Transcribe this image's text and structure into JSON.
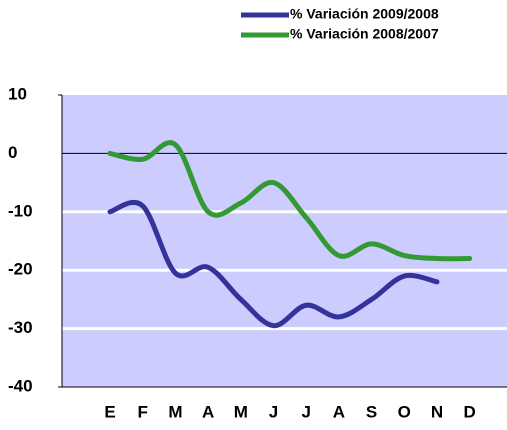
{
  "chart_data": {
    "type": "line",
    "categories": [
      "E",
      "F",
      "M",
      "A",
      "M",
      "J",
      "J",
      "A",
      "S",
      "O",
      "N",
      "D"
    ],
    "series": [
      {
        "name": "% Variación 2009/2008",
        "color": "#333399",
        "values": [
          -10,
          -9,
          -20.5,
          -19.5,
          -25,
          -29.5,
          -26,
          -28,
          -25,
          -21,
          -22,
          null
        ]
      },
      {
        "name": "% Variación 2008/2007",
        "color": "#339933",
        "values": [
          0,
          -1,
          1.5,
          -10,
          -8.5,
          -5,
          -11,
          -17.5,
          -15.5,
          -17.5,
          -18,
          -18
        ]
      }
    ],
    "ylim": [
      -40,
      10
    ],
    "yticks": [
      10,
      0,
      -10,
      -20,
      -30,
      -40
    ],
    "grid": true,
    "legend": "top-right"
  }
}
